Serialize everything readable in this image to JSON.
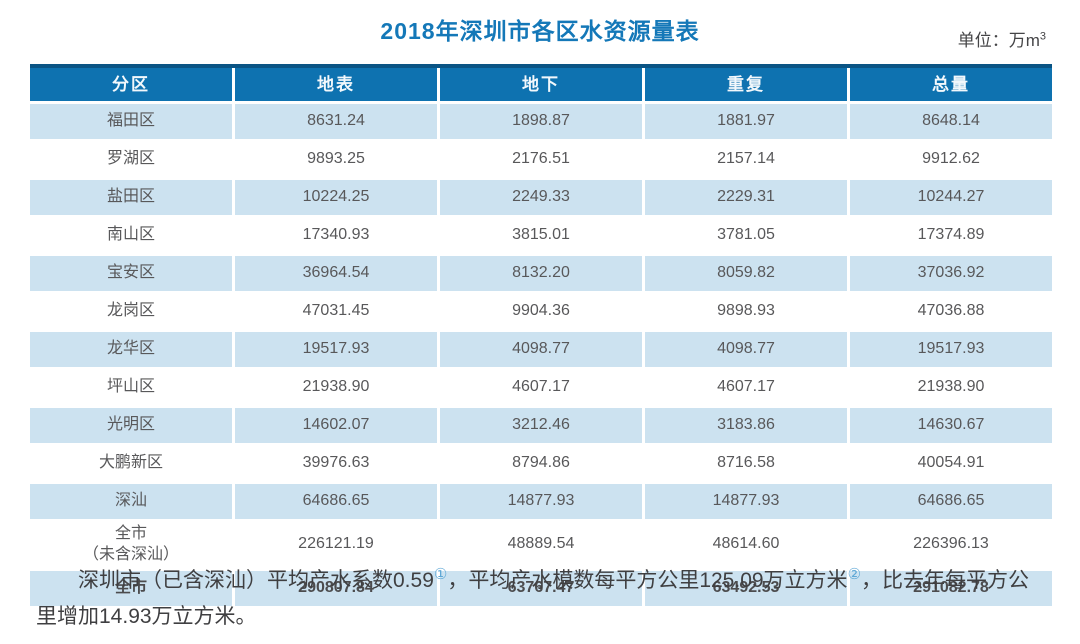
{
  "page": {
    "title": "2018年深圳市各区水资源量表",
    "unit_prefix": "单位：万m",
    "unit_superscript": "3"
  },
  "colors": {
    "title_blue": "#1478b8",
    "header_bg": "#0e72b0",
    "header_top_border": "#0a5484",
    "row_alt_bg": "#cce2f0",
    "body_text": "#58585a",
    "footnote_ref_blue": "#5fa8d6"
  },
  "chart_data": {
    "type": "table",
    "title": "2018年深圳市各区水资源量表",
    "unit": "万m³",
    "columns": [
      "分区",
      "地表",
      "地下",
      "重复",
      "总量"
    ],
    "rows": [
      [
        "福田区",
        8631.24,
        1898.87,
        1881.97,
        8648.14
      ],
      [
        "罗湖区",
        9893.25,
        2176.51,
        2157.14,
        9912.62
      ],
      [
        "盐田区",
        10224.25,
        2249.33,
        2229.31,
        10244.27
      ],
      [
        "南山区",
        17340.93,
        3815.01,
        3781.05,
        17374.89
      ],
      [
        "宝安区",
        36964.54,
        8132.2,
        8059.82,
        37036.92
      ],
      [
        "龙岗区",
        47031.45,
        9904.36,
        9898.93,
        47036.88
      ],
      [
        "龙华区",
        19517.93,
        4098.77,
        4098.77,
        19517.93
      ],
      [
        "坪山区",
        21938.9,
        4607.17,
        4607.17,
        21938.9
      ],
      [
        "光明区",
        14602.07,
        3212.46,
        3183.86,
        14630.67
      ],
      [
        "大鹏新区",
        39976.63,
        8794.86,
        8716.58,
        40054.91
      ],
      [
        "深汕",
        64686.65,
        14877.93,
        14877.93,
        64686.65
      ],
      [
        "全市\n（未含深汕）",
        226121.19,
        48889.54,
        48614.6,
        226396.13
      ],
      [
        "全市",
        290807.84,
        63767.47,
        63492.53,
        291082.78
      ]
    ]
  },
  "footnote": {
    "seg1": "深圳市（已含深汕）平均产水系数0.59",
    "ref1": "①",
    "seg2": "，平均产水模数每平方公里125.09万立方米",
    "ref2": "②",
    "seg3": "，比去年每平方公里增加14.93万立方米。"
  }
}
